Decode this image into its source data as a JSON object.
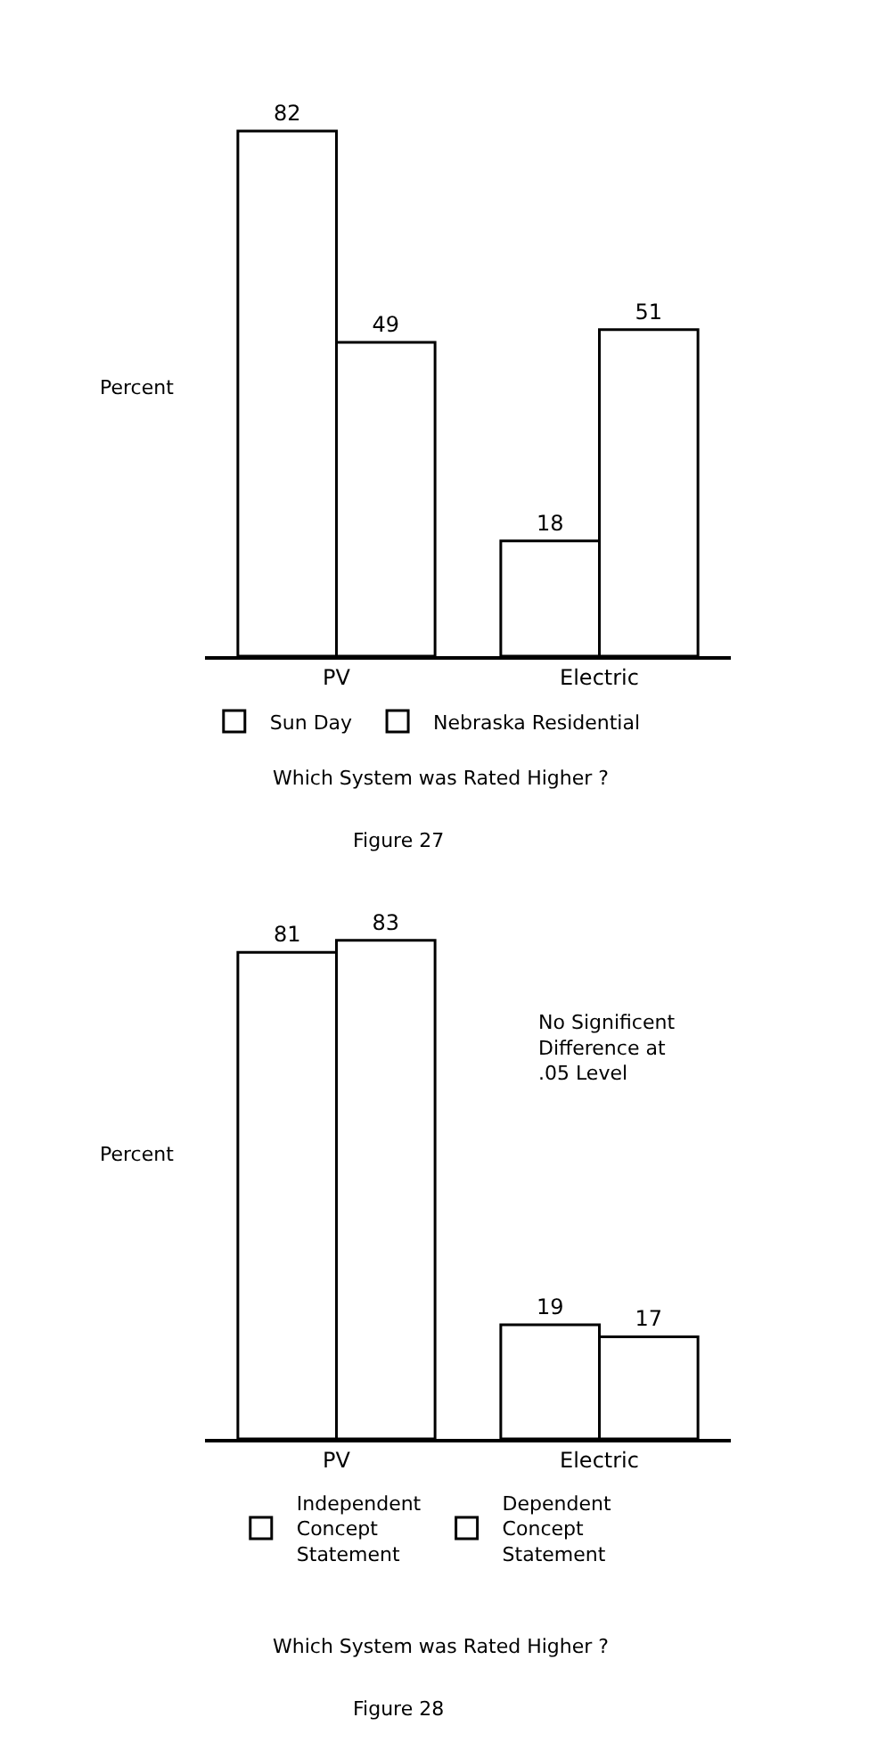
{
  "chart_data": [
    {
      "type": "bar",
      "ylabel": "Percent",
      "xlabel": "Which System was Rated Higher ?",
      "categories": [
        "PV",
        "Electric"
      ],
      "series": [
        {
          "name": "Sun Day",
          "color": "#ffffff",
          "values": [
            82,
            18
          ]
        },
        {
          "name": "Nebraska Residential",
          "color": "#ffffff",
          "values": [
            49,
            51
          ]
        }
      ],
      "data_labels": true,
      "legend": "bottom",
      "annotations": [
        "Figure 27"
      ]
    },
    {
      "type": "bar",
      "ylabel": "Percent",
      "xlabel": "Which System was Rated Higher ?",
      "categories": [
        "PV",
        "Electric"
      ],
      "series": [
        {
          "name": "Independent Concept Statement",
          "color": "#ffffff",
          "values": [
            81,
            19
          ]
        },
        {
          "name": "Dependent Concept Statement",
          "color": "#ffffff",
          "values": [
            83,
            17
          ]
        }
      ],
      "data_labels": true,
      "legend": "bottom",
      "annotations": [
        "No Significent Difference at .05 Level",
        "Figure 28"
      ]
    }
  ]
}
